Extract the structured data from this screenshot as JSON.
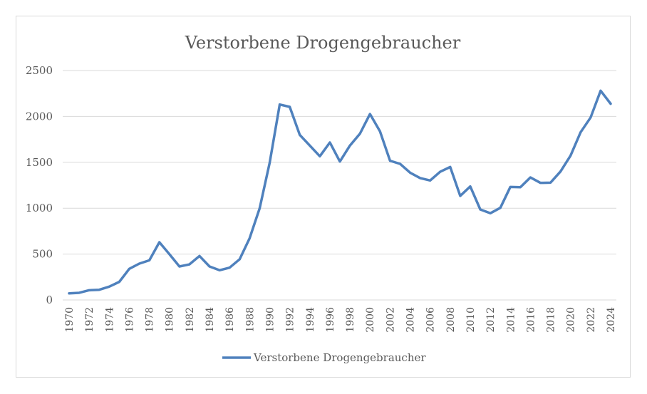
{
  "chart_data": {
    "type": "line",
    "title": "Verstorbene Drogengebraucher",
    "xlabel": "",
    "ylabel": "",
    "ylim": [
      0,
      2500
    ],
    "yticks": [
      0,
      500,
      1000,
      1500,
      2000,
      2500
    ],
    "grid": true,
    "legend_position": "bottom",
    "x": [
      1970,
      1971,
      1972,
      1973,
      1974,
      1975,
      1976,
      1977,
      1978,
      1979,
      1980,
      1981,
      1982,
      1983,
      1984,
      1985,
      1986,
      1987,
      1988,
      1989,
      1990,
      1991,
      1992,
      1993,
      1994,
      1995,
      1996,
      1997,
      1998,
      1999,
      2000,
      2001,
      2002,
      2003,
      2004,
      2005,
      2006,
      2007,
      2008,
      2009,
      2010,
      2011,
      2012,
      2013,
      2014,
      2015,
      2016,
      2017,
      2018,
      2019,
      2020,
      2021,
      2022,
      2023,
      2024
    ],
    "xtick_labels": [
      "1970",
      "1972",
      "1974",
      "1976",
      "1978",
      "1980",
      "1982",
      "1984",
      "1986",
      "1988",
      "1990",
      "1992",
      "1994",
      "1996",
      "1998",
      "2000",
      "2002",
      "2004",
      "2006",
      "2008",
      "2010",
      "2012",
      "2014",
      "2016",
      "2018",
      "2020",
      "2022",
      "2024"
    ],
    "series": [
      {
        "name": "Verstorbene Drogengebraucher",
        "color": "#4f81bd",
        "values": [
          72,
          78,
          106,
          111,
          145,
          197,
          339,
          396,
          432,
          629,
          499,
          365,
          388,
          479,
          365,
          324,
          352,
          443,
          673,
          999,
          1496,
          2130,
          2104,
          1799,
          1682,
          1566,
          1716,
          1509,
          1682,
          1812,
          2026,
          1837,
          1517,
          1483,
          1387,
          1328,
          1302,
          1397,
          1449,
          1134,
          1237,
          986,
          945,
          1004,
          1232,
          1229,
          1335,
          1276,
          1278,
          1400,
          1573,
          1827,
          1988,
          2280,
          2138
        ]
      }
    ]
  }
}
